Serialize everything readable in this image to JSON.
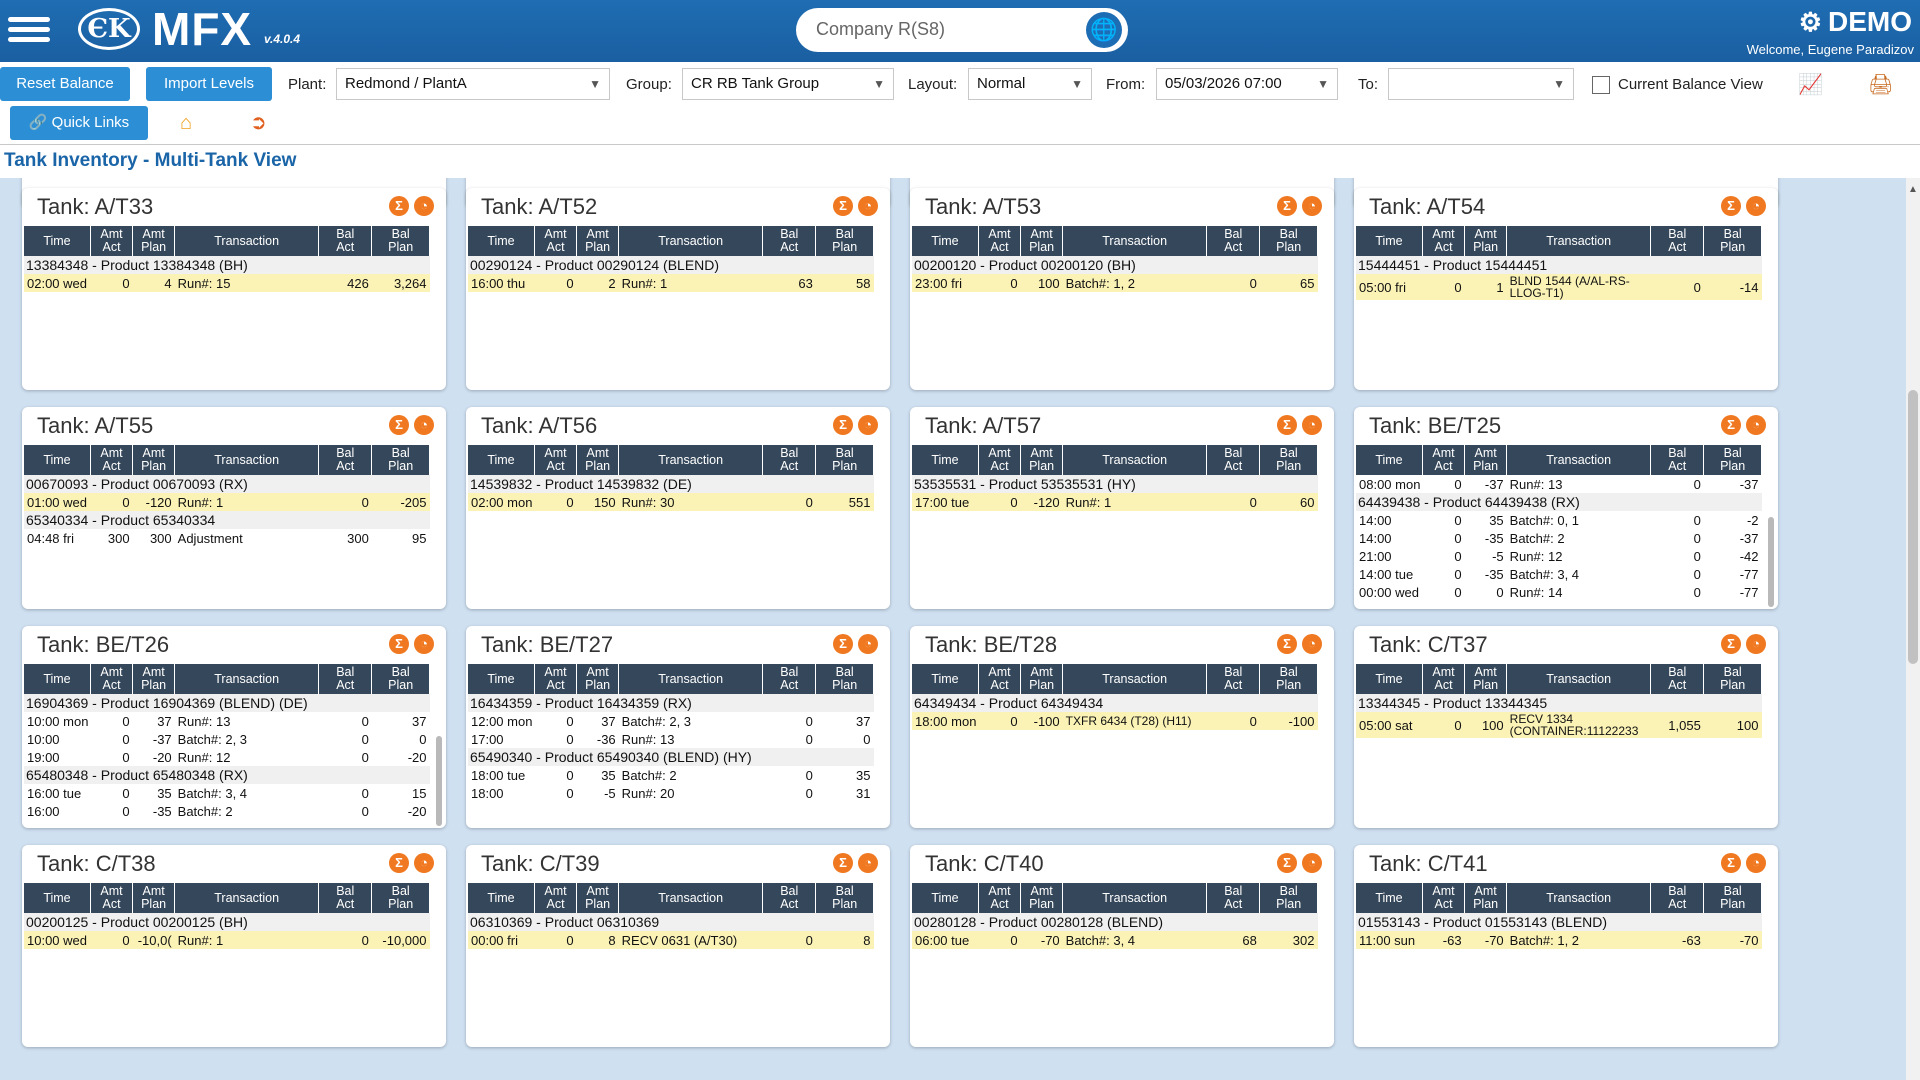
{
  "header": {
    "logo_mark": "ЄK",
    "logo_text": "MFX",
    "version": "v.4.0.4",
    "company": "Company R(S8)",
    "env": "DEMO",
    "welcome": "Welcome, Eugene Paradizov"
  },
  "toolbar": {
    "reset_balance": "Reset Balance",
    "import_levels": "Import Levels",
    "quick_links": "Quick Links",
    "plant_label": "Plant:",
    "plant_value": "Redmond / PlantA",
    "group_label": "Group:",
    "group_value": "CR RB Tank Group",
    "layout_label": "Layout:",
    "layout_value": "Normal",
    "from_label": "From:",
    "from_value": "05/03/2026 07:00",
    "to_label": "To:",
    "to_value": "",
    "current_balance_label": "Current Balance View"
  },
  "page_title": "Tank Inventory - Multi-Tank View",
  "columns": [
    "Time",
    "Amt Act",
    "Amt Plan",
    "Transaction",
    "Bal Act",
    "Bal Plan"
  ],
  "tanks": [
    {
      "title": "Tank: A/T33",
      "rows": [
        {
          "type": "prod",
          "text": "13384348 - Product 13384348 (BH)"
        },
        {
          "type": "hl",
          "c": [
            "02:00 wed",
            "0",
            "4",
            "Run#: 15",
            "426",
            "3,264"
          ]
        }
      ]
    },
    {
      "title": "Tank: A/T52",
      "rows": [
        {
          "type": "prod",
          "text": "00290124 - Product 00290124 (BLEND)"
        },
        {
          "type": "hl",
          "c": [
            "16:00 thu",
            "0",
            "2",
            "Run#: 1",
            "63",
            "58"
          ]
        }
      ]
    },
    {
      "title": "Tank: A/T53",
      "rows": [
        {
          "type": "prod",
          "text": "00200120 - Product 00200120 (BH)"
        },
        {
          "type": "hl",
          "c": [
            "23:00 fri",
            "0",
            "100",
            "Batch#: 1, 2",
            "0",
            "65"
          ]
        }
      ]
    },
    {
      "title": "Tank: A/T54",
      "rows": [
        {
          "type": "prod",
          "text": "15444451 - Product 15444451"
        },
        {
          "type": "hl",
          "c": [
            "05:00 fri",
            "0",
            "1",
            "BLND 1544 (A/AL-RS-LLOG-T1)",
            "0",
            "-14"
          ]
        }
      ]
    },
    {
      "title": "Tank: A/T55",
      "rows": [
        {
          "type": "prod",
          "text": "00670093 - Product 00670093 (RX)"
        },
        {
          "type": "hl",
          "c": [
            "01:00 wed",
            "0",
            "-120",
            "Run#: 1",
            "0",
            "-205"
          ]
        },
        {
          "type": "prod",
          "text": "65340334 - Product 65340334"
        },
        {
          "type": "row",
          "c": [
            "04:48 fri",
            "300",
            "300",
            "Adjustment",
            "300",
            "95"
          ]
        }
      ]
    },
    {
      "title": "Tank: A/T56",
      "rows": [
        {
          "type": "prod",
          "text": "14539832 - Product 14539832 (DE)"
        },
        {
          "type": "hl",
          "c": [
            "02:00 mon",
            "0",
            "150",
            "Run#: 30",
            "0",
            "551"
          ]
        }
      ]
    },
    {
      "title": "Tank: A/T57",
      "rows": [
        {
          "type": "prod",
          "text": "53535531 - Product 53535531 (HY)"
        },
        {
          "type": "hl",
          "c": [
            "17:00 tue",
            "0",
            "-120",
            "Run#: 1",
            "0",
            "60"
          ]
        }
      ]
    },
    {
      "title": "Tank: BE/T25",
      "rows": [
        {
          "type": "row",
          "c": [
            "08:00 mon",
            "0",
            "-37",
            "Run#: 13",
            "0",
            "-37"
          ]
        },
        {
          "type": "prod",
          "text": "64439438 - Product 64439438 (RX)"
        },
        {
          "type": "row",
          "c": [
            "14:00",
            "0",
            "35",
            "Batch#: 0, 1",
            "0",
            "-2"
          ]
        },
        {
          "type": "row",
          "c": [
            "14:00",
            "0",
            "-35",
            "Batch#: 2",
            "0",
            "-37"
          ]
        },
        {
          "type": "row",
          "c": [
            "21:00",
            "0",
            "-5",
            "Run#: 12",
            "0",
            "-42"
          ]
        },
        {
          "type": "row",
          "c": [
            "14:00 tue",
            "0",
            "-35",
            "Batch#: 3, 4",
            "0",
            "-77"
          ]
        },
        {
          "type": "row",
          "c": [
            "00:00 wed",
            "0",
            "0",
            "Run#: 14",
            "0",
            "-77"
          ]
        }
      ]
    },
    {
      "title": "Tank: BE/T26",
      "rows": [
        {
          "type": "prod",
          "text": "16904369 - Product 16904369 (BLEND) (DE)"
        },
        {
          "type": "row",
          "c": [
            "10:00 mon",
            "0",
            "37",
            "Run#: 13",
            "0",
            "37"
          ]
        },
        {
          "type": "row",
          "c": [
            "10:00",
            "0",
            "-37",
            "Batch#: 2, 3",
            "0",
            "0"
          ]
        },
        {
          "type": "row",
          "c": [
            "19:00",
            "0",
            "-20",
            "Run#: 12",
            "0",
            "-20"
          ]
        },
        {
          "type": "prod",
          "text": "65480348 - Product 65480348 (RX)"
        },
        {
          "type": "row",
          "c": [
            "16:00 tue",
            "0",
            "35",
            "Batch#: 3, 4",
            "0",
            "15"
          ]
        },
        {
          "type": "row",
          "c": [
            "16:00",
            "0",
            "-35",
            "Batch#: 2",
            "0",
            "-20"
          ]
        }
      ]
    },
    {
      "title": "Tank: BE/T27",
      "rows": [
        {
          "type": "prod",
          "text": "16434359 - Product 16434359 (RX)"
        },
        {
          "type": "row",
          "c": [
            "12:00 mon",
            "0",
            "37",
            "Batch#: 2, 3",
            "0",
            "37"
          ]
        },
        {
          "type": "row",
          "c": [
            "17:00",
            "0",
            "-36",
            "Run#: 13",
            "0",
            "0"
          ]
        },
        {
          "type": "prod",
          "text": "65490340 - Product 65490340 (BLEND) (HY)"
        },
        {
          "type": "row",
          "c": [
            "18:00 tue",
            "0",
            "35",
            "Batch#: 2",
            "0",
            "35"
          ]
        },
        {
          "type": "row",
          "c": [
            "18:00",
            "0",
            "-5",
            "Run#: 20",
            "0",
            "31"
          ]
        }
      ]
    },
    {
      "title": "Tank: BE/T28",
      "rows": [
        {
          "type": "prod",
          "text": "64349434 - Product 64349434"
        },
        {
          "type": "hl",
          "c": [
            "18:00 mon",
            "0",
            "-100",
            "TXFR 6434 (T28) (H11)",
            "0",
            "-100"
          ]
        }
      ]
    },
    {
      "title": "Tank: C/T37",
      "rows": [
        {
          "type": "prod",
          "text": "13344345 - Product 13344345"
        },
        {
          "type": "hl",
          "c": [
            "05:00 sat",
            "0",
            "100",
            "RECV 1334 (CONTAINER:11122233",
            "1,055",
            "100"
          ]
        }
      ]
    },
    {
      "title": "Tank: C/T38",
      "rows": [
        {
          "type": "prod",
          "text": "00200125 - Product 00200125 (BH)"
        },
        {
          "type": "hl",
          "c": [
            "10:00 wed",
            "0",
            "-10,0(",
            "Run#: 1",
            "0",
            "-10,000"
          ]
        }
      ]
    },
    {
      "title": "Tank: C/T39",
      "rows": [
        {
          "type": "prod",
          "text": "06310369 - Product 06310369"
        },
        {
          "type": "hl",
          "c": [
            "00:00 fri",
            "0",
            "8",
            "RECV 0631 (A/T30)",
            "0",
            "8"
          ]
        }
      ]
    },
    {
      "title": "Tank: C/T40",
      "rows": [
        {
          "type": "prod",
          "text": "00280128 - Product 00280128 (BLEND)"
        },
        {
          "type": "hl",
          "c": [
            "06:00 tue",
            "0",
            "-70",
            "Batch#: 3, 4",
            "68",
            "302"
          ]
        }
      ]
    },
    {
      "title": "Tank: C/T41",
      "rows": [
        {
          "type": "prod",
          "text": "01553143 - Product 01553143 (BLEND)"
        },
        {
          "type": "hl",
          "c": [
            "11:00 sun",
            "-63",
            "-70",
            "Batch#: 1, 2",
            "-63",
            "-70"
          ]
        }
      ]
    }
  ]
}
